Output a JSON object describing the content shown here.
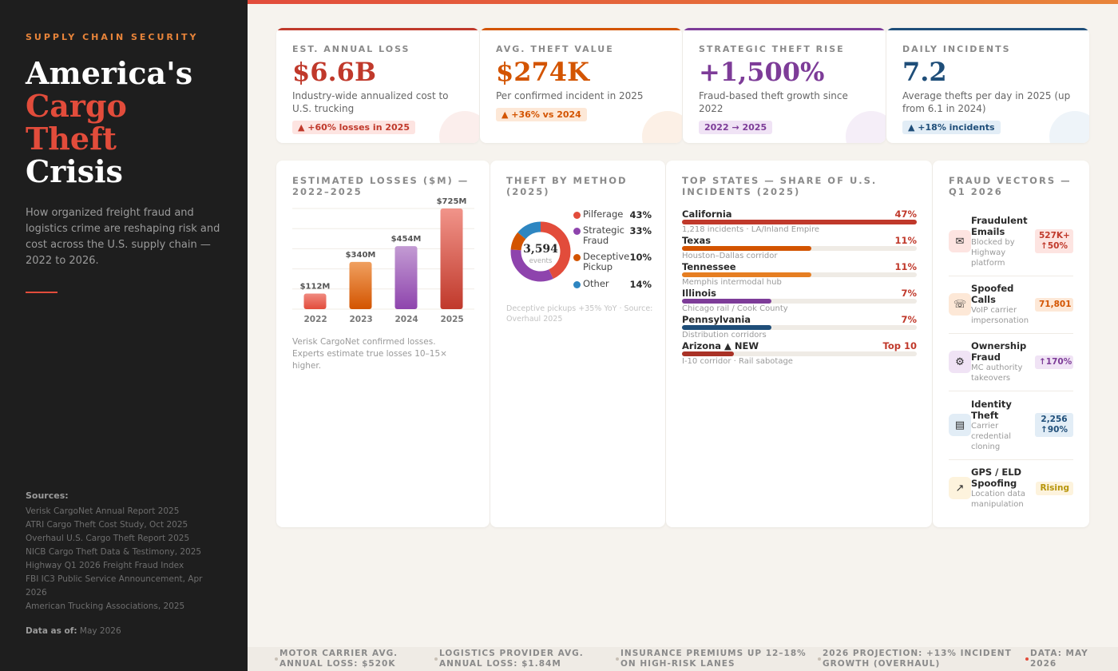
{
  "sidebar": {
    "eyebrow": "SUPPLY CHAIN SECURITY",
    "title_line1": "America's",
    "title_line2": "Cargo",
    "title_line3": "Theft",
    "title_line4": "Crisis",
    "intro": "How organized freight fraud and logistics crime are reshaping risk and cost across the U.S. supply chain — 2022 to 2026.",
    "sources_title": "Sources:",
    "sources": [
      "Verisk CargoNet Annual Report 2025",
      "ATRI Cargo Theft Cost Study, Oct 2025",
      "Overhaul U.S. Cargo Theft Report 2025",
      "NICB Cargo Theft Data & Testimony, 2025",
      "Highway Q1 2026 Freight Fraud Index",
      "FBI IC3 Public Service Announcement, Apr 2026",
      "American Trucking Associations, 2025"
    ],
    "asof_label": "Data as of:",
    "asof_value": "May 2026"
  },
  "kpis": [
    {
      "label": "EST. ANNUAL LOSS",
      "value": "$6.6B",
      "desc": "Industry-wide annualized cost to U.S. trucking",
      "badge": "▲ +60% losses in 2025",
      "color": "#c0392b",
      "badge_bg": "#fde4e1",
      "badge_color": "#c0392b",
      "circle": "#fbeeec"
    },
    {
      "label": "AVG. THEFT VALUE",
      "value": "$274K",
      "desc": "Per confirmed incident in 2025",
      "badge": "▲ +36% vs 2024",
      "color": "#d35400",
      "badge_bg": "#fde8d7",
      "badge_color": "#d35400",
      "circle": "#fcf0e6"
    },
    {
      "label": "STRATEGIC THEFT RISE",
      "value": "+1,500%",
      "desc": "Fraud-based theft growth since 2022",
      "badge": "2022 → 2025",
      "color": "#7d3c98",
      "badge_bg": "#f0e3f5",
      "badge_color": "#7d3c98",
      "circle": "#f5eef8"
    },
    {
      "label": "DAILY INCIDENTS",
      "value": "7.2",
      "desc": "Average thefts per day in 2025 (up from 6.1 in 2024)",
      "badge": "▲ +18% incidents",
      "color": "#1f4e79",
      "badge_bg": "#e2edf6",
      "badge_color": "#1f4e79",
      "circle": "#eef4f9"
    }
  ],
  "losses_card": {
    "title": "ESTIMATED LOSSES ($M) — 2022–2025",
    "note_line1": "Verisk CargoNet confirmed losses.",
    "note_line2": "Experts estimate true losses 10–15× higher."
  },
  "chart_data": [
    {
      "type": "bar",
      "title": "ESTIMATED LOSSES ($M) — 2022–2025",
      "categories": [
        "2022",
        "2023",
        "2024",
        "2025"
      ],
      "values": [
        112,
        340,
        454,
        725
      ],
      "value_labels": [
        "$112M",
        "$340M",
        "$454M",
        "$725M"
      ],
      "colors": [
        [
          "#f08a80",
          "#e24c3b"
        ],
        [
          "#f0a060",
          "#d35400"
        ],
        [
          "#c39bd3",
          "#8e44ad"
        ],
        [
          "#f1948a",
          "#c0392b"
        ]
      ],
      "ylim": [
        0,
        725
      ],
      "grid": true
    },
    {
      "type": "pie",
      "title": "THEFT BY METHOD (2025)",
      "categories": [
        "Pilferage",
        "Strategic Fraud",
        "Deceptive Pickup",
        "Other"
      ],
      "values": [
        43,
        33,
        10,
        14
      ],
      "value_labels": [
        "43%",
        "33%",
        "10%",
        "14%"
      ],
      "colors": [
        "#e24c3b",
        "#8e44ad",
        "#d35400",
        "#2e86c1"
      ]
    },
    {
      "type": "bar",
      "title": "TOP STATES — SHARE OF U.S. INCIDENTS (2025)",
      "categories": [
        "California",
        "Texas",
        "Tennessee",
        "Illinois",
        "Pennsylvania",
        "Arizona ▲ NEW"
      ],
      "values": [
        47,
        11,
        11,
        7,
        7,
        null
      ]
    }
  ],
  "method_card": {
    "title": "THEFT BY METHOD (2025)",
    "center_value": "3,594",
    "center_label": "events",
    "legend": [
      {
        "label": "Pilferage",
        "value": "43%"
      },
      {
        "label": "Strategic Fraud",
        "value": "33%"
      },
      {
        "label": "Deceptive Pickup",
        "value": "10%"
      },
      {
        "label": "Other",
        "value": "14%"
      }
    ],
    "note": "Deceptive pickups +35% YoY · Source: Overhaul 2025"
  },
  "states_card": {
    "title": "TOP STATES — SHARE OF U.S. INCIDENTS (2025)",
    "rows": [
      {
        "name": "California",
        "pct": "47%",
        "sub": "1,218 incidents · LA/Inland Empire",
        "fill": 1.0,
        "color": "#c0392b"
      },
      {
        "name": "Texas",
        "pct": "11%",
        "sub": "Houston–Dallas corridor",
        "fill": 0.55,
        "color": "#d35400"
      },
      {
        "name": "Tennessee",
        "pct": "11%",
        "sub": "Memphis intermodal hub",
        "fill": 0.55,
        "color": "#e67e22"
      },
      {
        "name": "Illinois",
        "pct": "7%",
        "sub": "Chicago rail / Cook County",
        "fill": 0.38,
        "color": "#7d3c98"
      },
      {
        "name": "Pennsylvania",
        "pct": "7%",
        "sub": "Distribution corridors",
        "fill": 0.38,
        "color": "#1f4e79"
      },
      {
        "name": "Arizona ▲ NEW",
        "pct": "Top 10",
        "sub": "I-10 corridor · Rail sabotage",
        "fill": 0.22,
        "color": "#a93226"
      }
    ]
  },
  "fraud_card": {
    "title": "FRAUD VECTORS — Q1 2026",
    "items": [
      {
        "icon": "email-icon",
        "glyph": "✉",
        "name": "Fraudulent Emails",
        "desc": "Blocked by Highway platform",
        "badge": "527K+ ↑50%",
        "icon_bg": "#fde4e1",
        "badge_bg": "#fde4e1",
        "badge_color": "#c0392b"
      },
      {
        "icon": "phone-icon",
        "glyph": "☏",
        "name": "Spoofed Calls",
        "desc": "VoIP carrier impersonation",
        "badge": "71,801",
        "icon_bg": "#fde8d7",
        "badge_bg": "#fde8d7",
        "badge_color": "#d35400"
      },
      {
        "icon": "gear-icon",
        "glyph": "⚙",
        "name": "Ownership Fraud",
        "desc": "MC authority takeovers",
        "badge": "↑170%",
        "icon_bg": "#f0e3f5",
        "badge_bg": "#f0e3f5",
        "badge_color": "#7d3c98"
      },
      {
        "icon": "id-card-icon",
        "glyph": "▤",
        "name": "Identity Theft",
        "desc": "Carrier credential cloning",
        "badge": "2,256 ↑90%",
        "icon_bg": "#e2edf6",
        "badge_bg": "#e2edf6",
        "badge_color": "#1f4e79"
      },
      {
        "icon": "satellite-icon",
        "glyph": "↗",
        "name": "GPS / ELD Spoofing",
        "desc": "Location data manipulation",
        "badge": "Rising",
        "icon_bg": "#fdf3dd",
        "badge_bg": "#fdf3dd",
        "badge_color": "#b7950b"
      }
    ]
  },
  "ticker": [
    "MOTOR CARRIER AVG. ANNUAL LOSS: $520K",
    "LOGISTICS PROVIDER AVG. ANNUAL LOSS: $1.84M",
    "INSURANCE PREMIUMS UP 12–18% ON HIGH-RISK LANES",
    "2026 PROJECTION: +13% INCIDENT GROWTH (OVERHAUL)",
    "DATA: MAY 2026"
  ]
}
